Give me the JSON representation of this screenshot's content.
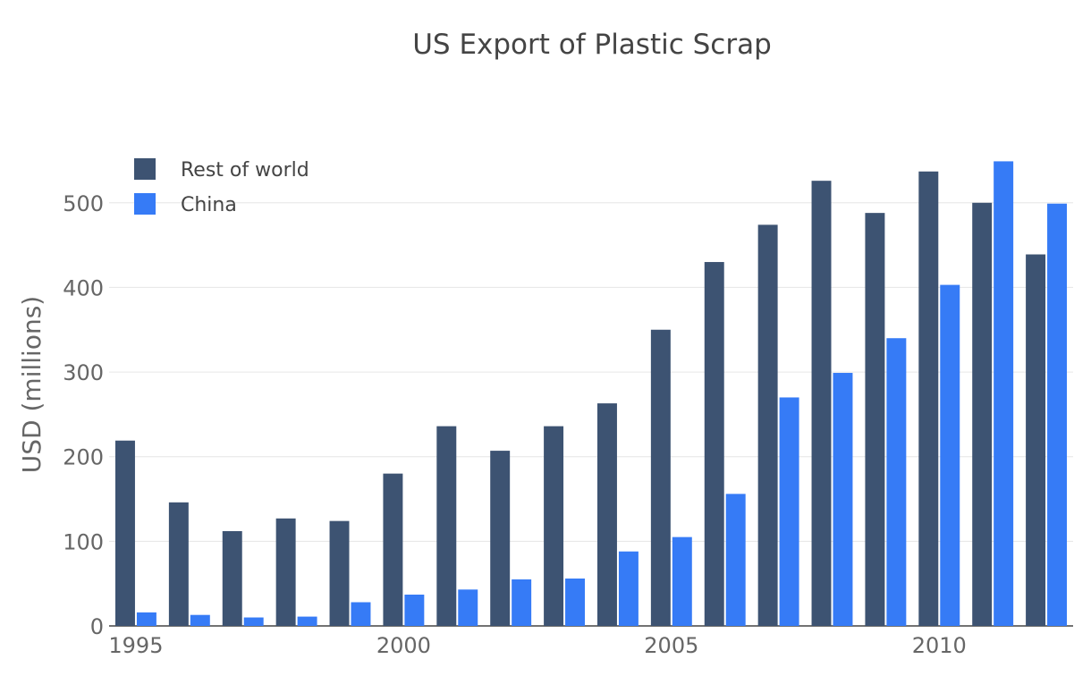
{
  "chart_data": {
    "type": "bar",
    "title": "US Export of Plastic Scrap",
    "ylabel": "USD (millions)",
    "xlabel": "",
    "ylim": [
      0,
      560
    ],
    "yticks": [
      0,
      100,
      200,
      300,
      400,
      500
    ],
    "xticks": [
      1995,
      2000,
      2005,
      2010
    ],
    "x": [
      1995,
      1996,
      1997,
      1998,
      1999,
      2000,
      2001,
      2002,
      2003,
      2004,
      2005,
      2006,
      2007,
      2008,
      2009,
      2010,
      2011,
      2012
    ],
    "series": [
      {
        "name": "Rest of world",
        "color": "#3D5372",
        "values": [
          219,
          146,
          112,
          127,
          124,
          180,
          236,
          207,
          236,
          263,
          350,
          430,
          474,
          526,
          488,
          537,
          500,
          439
        ]
      },
      {
        "name": "China",
        "color": "#367BF6",
        "values": [
          16,
          13,
          10,
          11,
          28,
          37,
          43,
          55,
          56,
          88,
          105,
          156,
          270,
          299,
          340,
          403,
          549,
          499
        ]
      }
    ],
    "legend": "top-left",
    "grid": true
  }
}
